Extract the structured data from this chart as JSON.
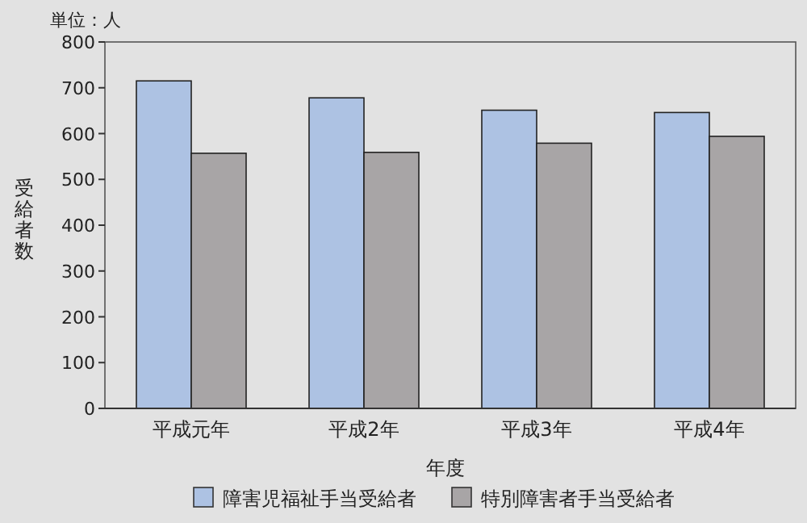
{
  "chart_data": {
    "type": "bar",
    "xlabel": "年度",
    "ylabel": "受給者数",
    "annotations": [
      "単位：人"
    ],
    "categories": [
      "平成元年",
      "平成2年",
      "平成3年",
      "平成4年"
    ],
    "series": [
      {
        "name": "障害児福祉手当受給者",
        "color": "#adc2e3",
        "values": [
          715,
          678,
          651,
          646
        ]
      },
      {
        "name": "特別障害者手当受給者",
        "color": "#a8a5a6",
        "values": [
          557,
          559,
          579,
          594
        ]
      }
    ],
    "ylim": [
      0,
      800
    ],
    "yticks": [
      0,
      100,
      200,
      300,
      400,
      500,
      600,
      700,
      800
    ],
    "legend": "bottom"
  }
}
